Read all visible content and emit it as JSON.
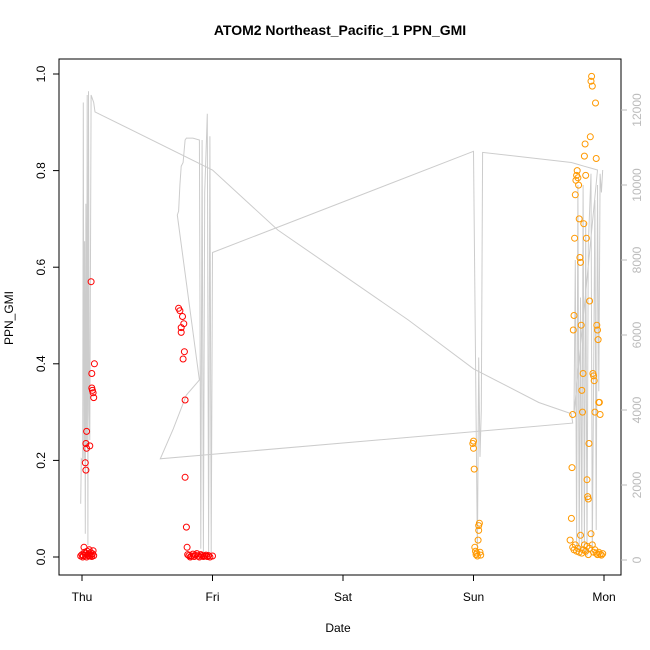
{
  "chart_data": {
    "type": "scatter",
    "title": "ATOM2 Northeast_Pacific_1 PPN_GMI",
    "xlabel": "Date",
    "ylabel": "PPN_GMI",
    "x_ticks": [
      {
        "label": "Thu",
        "day": 0
      },
      {
        "label": "Fri",
        "day": 1
      },
      {
        "label": "Sat",
        "day": 2
      },
      {
        "label": "Sun",
        "day": 3
      },
      {
        "label": "Mon",
        "day": 4
      }
    ],
    "y_ticks": [
      "0.0",
      "0.2",
      "0.4",
      "0.6",
      "0.8",
      "1.0"
    ],
    "ylim": [
      0,
      1.0
    ],
    "y2_ticks": [
      "0",
      "2000",
      "4000",
      "6000",
      "8000",
      "10000",
      "12000"
    ],
    "y2lim": [
      0,
      12500
    ],
    "xlim_days": [
      -0.05,
      4.05
    ],
    "colors": {
      "series_red": "#ff0000",
      "series_orange": "#ff9900",
      "line": "#cccccc",
      "axis": "#000000",
      "axis2": "#bbbbbb"
    },
    "series": [
      {
        "color": "#ff0000",
        "points": [
          [
            -0.01,
            0.002
          ],
          [
            0.0,
            0.005
          ],
          [
            0.005,
            0.0
          ],
          [
            0.01,
            0.003
          ],
          [
            0.015,
            0.02
          ],
          [
            0.02,
            0.01
          ],
          [
            0.025,
            0.004
          ],
          [
            0.03,
            0.008
          ],
          [
            0.035,
            0.0
          ],
          [
            0.04,
            0.012
          ],
          [
            0.045,
            0.003
          ],
          [
            0.05,
            0.006
          ],
          [
            0.055,
            0.015
          ],
          [
            0.06,
            0.002
          ],
          [
            0.065,
            0.009
          ],
          [
            0.07,
            0.004
          ],
          [
            0.075,
            0.001
          ],
          [
            0.08,
            0.007
          ],
          [
            0.085,
            0.013
          ],
          [
            0.09,
            0.003
          ],
          [
            0.03,
            0.235
          ],
          [
            0.035,
            0.26
          ],
          [
            0.025,
            0.195
          ],
          [
            0.03,
            0.18
          ],
          [
            0.035,
            0.225
          ],
          [
            0.06,
            0.23
          ],
          [
            0.07,
            0.57
          ],
          [
            0.075,
            0.38
          ],
          [
            0.075,
            0.35
          ],
          [
            0.08,
            0.345
          ],
          [
            0.085,
            0.34
          ],
          [
            0.09,
            0.33
          ],
          [
            0.095,
            0.4
          ],
          [
            0.74,
            0.515
          ],
          [
            0.75,
            0.51
          ],
          [
            0.76,
            0.475
          ],
          [
            0.77,
            0.498
          ],
          [
            0.78,
            0.483
          ],
          [
            0.76,
            0.465
          ],
          [
            0.775,
            0.41
          ],
          [
            0.785,
            0.425
          ],
          [
            0.79,
            0.325
          ],
          [
            0.79,
            0.165
          ],
          [
            0.8,
            0.062
          ],
          [
            0.805,
            0.02
          ],
          [
            0.81,
            0.005
          ],
          [
            0.82,
            0.003
          ],
          [
            0.83,
            0.0
          ],
          [
            0.84,
            0.002
          ],
          [
            0.85,
            0.006
          ],
          [
            0.86,
            0.001
          ],
          [
            0.87,
            0.004
          ],
          [
            0.88,
            0.007
          ],
          [
            0.89,
            0.002
          ],
          [
            0.9,
            0.0
          ],
          [
            0.91,
            0.005
          ],
          [
            0.92,
            0.003
          ],
          [
            0.93,
            0.001
          ],
          [
            0.94,
            0.002
          ],
          [
            0.95,
            0.004
          ],
          [
            0.96,
            0.001
          ],
          [
            0.97,
            0.003
          ],
          [
            0.98,
            0.0
          ],
          [
            1.0,
            0.002
          ]
        ]
      },
      {
        "color": "#ff9900",
        "points": [
          [
            2.995,
            0.235
          ],
          [
            3.0,
            0.24
          ],
          [
            3.0,
            0.225
          ],
          [
            3.005,
            0.182
          ],
          [
            3.01,
            0.02
          ],
          [
            3.015,
            0.012
          ],
          [
            3.02,
            0.005
          ],
          [
            3.025,
            0.008
          ],
          [
            3.03,
            0.002
          ],
          [
            3.035,
            0.035
          ],
          [
            3.04,
            0.055
          ],
          [
            3.04,
            0.065
          ],
          [
            3.045,
            0.07
          ],
          [
            3.05,
            0.01
          ],
          [
            3.055,
            0.004
          ],
          [
            3.74,
            0.035
          ],
          [
            3.75,
            0.08
          ],
          [
            3.755,
            0.185
          ],
          [
            3.76,
            0.295
          ],
          [
            3.765,
            0.47
          ],
          [
            3.77,
            0.5
          ],
          [
            3.775,
            0.66
          ],
          [
            3.78,
            0.75
          ],
          [
            3.785,
            0.78
          ],
          [
            3.79,
            0.79
          ],
          [
            3.795,
            0.8
          ],
          [
            3.8,
            0.785
          ],
          [
            3.805,
            0.77
          ],
          [
            3.81,
            0.7
          ],
          [
            3.815,
            0.62
          ],
          [
            3.82,
            0.61
          ],
          [
            3.825,
            0.48
          ],
          [
            3.83,
            0.345
          ],
          [
            3.835,
            0.3
          ],
          [
            3.84,
            0.38
          ],
          [
            3.845,
            0.69
          ],
          [
            3.85,
            0.83
          ],
          [
            3.855,
            0.855
          ],
          [
            3.86,
            0.79
          ],
          [
            3.865,
            0.66
          ],
          [
            3.87,
            0.16
          ],
          [
            3.875,
            0.125
          ],
          [
            3.88,
            0.12
          ],
          [
            3.885,
            0.235
          ],
          [
            3.89,
            0.53
          ],
          [
            3.895,
            0.87
          ],
          [
            3.9,
            0.985
          ],
          [
            3.905,
            0.995
          ],
          [
            3.91,
            0.975
          ],
          [
            3.915,
            0.38
          ],
          [
            3.92,
            0.375
          ],
          [
            3.925,
            0.365
          ],
          [
            3.93,
            0.3
          ],
          [
            3.935,
            0.94
          ],
          [
            3.94,
            0.825
          ],
          [
            3.945,
            0.48
          ],
          [
            3.95,
            0.47
          ],
          [
            3.955,
            0.45
          ],
          [
            3.96,
            0.32
          ],
          [
            3.965,
            0.32
          ],
          [
            3.97,
            0.295
          ],
          [
            3.76,
            0.02
          ],
          [
            3.77,
            0.015
          ],
          [
            3.78,
            0.025
          ],
          [
            3.79,
            0.012
          ],
          [
            3.8,
            0.018
          ],
          [
            3.81,
            0.01
          ],
          [
            3.82,
            0.045
          ],
          [
            3.83,
            0.008
          ],
          [
            3.84,
            0.015
          ],
          [
            3.85,
            0.025
          ],
          [
            3.86,
            0.012
          ],
          [
            3.87,
            0.022
          ],
          [
            3.88,
            0.005
          ],
          [
            3.89,
            0.018
          ],
          [
            3.9,
            0.048
          ],
          [
            3.91,
            0.025
          ],
          [
            3.92,
            0.01
          ],
          [
            3.93,
            0.015
          ],
          [
            3.94,
            0.008
          ],
          [
            3.95,
            0.005
          ],
          [
            3.96,
            0.01
          ],
          [
            3.97,
            0.006
          ],
          [
            3.98,
            0.004
          ],
          [
            3.99,
            0.007
          ]
        ]
      }
    ],
    "line_series_y2": [
      [
        -0.01,
        1500
      ],
      [
        -0.005,
        2700
      ],
      [
        0.005,
        2650
      ],
      [
        0.01,
        12200
      ],
      [
        0.015,
        2700
      ],
      [
        0.02,
        8500
      ],
      [
        0.025,
        700
      ],
      [
        0.03,
        9500
      ],
      [
        0.035,
        3000
      ],
      [
        0.04,
        12400
      ],
      [
        0.045,
        400
      ],
      [
        0.05,
        12500
      ],
      [
        0.055,
        4000
      ],
      [
        0.06,
        3200
      ],
      [
        0.07,
        12400
      ],
      [
        0.08,
        12300
      ],
      [
        0.09,
        12200
      ],
      [
        0.1,
        11950
      ],
      [
        1.0,
        10400
      ],
      [
        1.5,
        8800
      ],
      [
        2.5,
        6400
      ],
      [
        3.0,
        5100
      ],
      [
        3.5,
        4200
      ],
      [
        3.75,
        3900
      ],
      [
        3.76,
        3650
      ],
      [
        0.6,
        2700
      ],
      [
        0.7,
        3500
      ],
      [
        0.8,
        4400
      ],
      [
        0.9,
        4800
      ],
      [
        0.73,
        9200
      ],
      [
        0.74,
        9300
      ],
      [
        0.75,
        10000
      ],
      [
        0.76,
        10500
      ],
      [
        0.775,
        10600
      ],
      [
        0.79,
        11200
      ],
      [
        0.8,
        11250
      ],
      [
        0.85,
        11250
      ],
      [
        0.9,
        11200
      ],
      [
        0.91,
        300
      ],
      [
        0.92,
        11200
      ],
      [
        0.93,
        200
      ],
      [
        0.94,
        9800
      ],
      [
        0.96,
        11900
      ],
      [
        0.97,
        150
      ],
      [
        0.98,
        11300
      ],
      [
        0.99,
        200
      ],
      [
        1.0,
        8200
      ],
      [
        3.0,
        10900
      ],
      [
        3.03,
        200
      ],
      [
        3.04,
        5400
      ],
      [
        3.05,
        2750
      ],
      [
        3.06,
        4000
      ],
      [
        3.07,
        10870
      ],
      [
        3.75,
        10600
      ],
      [
        3.8,
        10550
      ],
      [
        3.85,
        10500
      ],
      [
        3.9,
        10450
      ],
      [
        3.95,
        10400
      ],
      [
        3.77,
        3900
      ],
      [
        3.78,
        8000
      ],
      [
        3.79,
        400
      ],
      [
        3.8,
        10000
      ],
      [
        3.81,
        100
      ],
      [
        3.82,
        7000
      ],
      [
        3.83,
        300
      ],
      [
        3.84,
        10000
      ],
      [
        3.85,
        200
      ],
      [
        3.86,
        9000
      ],
      [
        3.87,
        100
      ],
      [
        3.88,
        8400
      ],
      [
        3.9,
        10300
      ],
      [
        3.91,
        200
      ],
      [
        3.92,
        4800
      ],
      [
        3.93,
        9600
      ],
      [
        3.94,
        800
      ],
      [
        3.95,
        10000
      ],
      [
        3.96,
        4500
      ],
      [
        3.97,
        10300
      ],
      [
        3.98,
        9800
      ],
      [
        3.99,
        10400
      ]
    ]
  }
}
